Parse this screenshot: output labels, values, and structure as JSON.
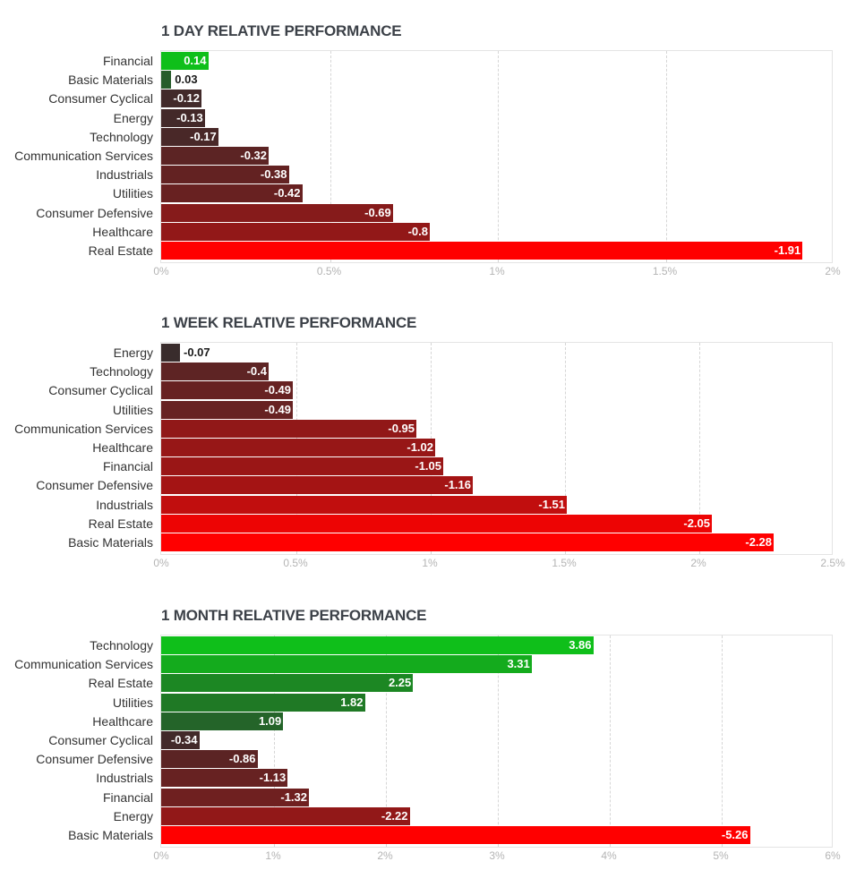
{
  "chart_data": [
    {
      "type": "bar",
      "orientation": "horizontal",
      "title": "1 DAY RELATIVE PERFORMANCE",
      "categories": [
        "Financial",
        "Basic Materials",
        "Consumer Cyclical",
        "Energy",
        "Technology",
        "Communication Services",
        "Industrials",
        "Utilities",
        "Consumer Defensive",
        "Healthcare",
        "Real Estate"
      ],
      "values": [
        0.14,
        0.03,
        -0.12,
        -0.13,
        -0.17,
        -0.32,
        -0.38,
        -0.42,
        -0.69,
        -0.8,
        -1.91
      ],
      "value_labels": [
        "0.14",
        "0.03",
        "-0.12",
        "-0.13",
        "-0.17",
        "-0.32",
        "-0.38",
        "-0.42",
        "-0.69",
        "-0.8",
        "-1.91"
      ],
      "xlim": [
        0,
        2
      ],
      "ticks": [
        0,
        0.5,
        1,
        1.5,
        2
      ],
      "tick_labels": [
        "0%",
        "0.5%",
        "1%",
        "1.5%",
        "2%"
      ],
      "scale": "absolute value"
    },
    {
      "type": "bar",
      "orientation": "horizontal",
      "title": "1 WEEK RELATIVE PERFORMANCE",
      "categories": [
        "Energy",
        "Technology",
        "Consumer Cyclical",
        "Utilities",
        "Communication Services",
        "Healthcare",
        "Financial",
        "Consumer Defensive",
        "Industrials",
        "Real Estate",
        "Basic Materials"
      ],
      "values": [
        -0.07,
        -0.4,
        -0.49,
        -0.49,
        -0.95,
        -1.02,
        -1.05,
        -1.16,
        -1.51,
        -2.05,
        -2.28
      ],
      "value_labels": [
        "-0.07",
        "-0.4",
        "-0.49",
        "-0.49",
        "-0.95",
        "-1.02",
        "-1.05",
        "-1.16",
        "-1.51",
        "-2.05",
        "-2.28"
      ],
      "xlim": [
        0,
        2.5
      ],
      "ticks": [
        0,
        0.5,
        1,
        1.5,
        2,
        2.5
      ],
      "tick_labels": [
        "0%",
        "0.5%",
        "1%",
        "1.5%",
        "2%",
        "2.5%"
      ],
      "scale": "absolute value"
    },
    {
      "type": "bar",
      "orientation": "horizontal",
      "title": "1 MONTH RELATIVE PERFORMANCE",
      "categories": [
        "Technology",
        "Communication Services",
        "Real Estate",
        "Utilities",
        "Healthcare",
        "Consumer Cyclical",
        "Consumer Defensive",
        "Industrials",
        "Financial",
        "Energy",
        "Basic Materials"
      ],
      "values": [
        3.86,
        3.31,
        2.25,
        1.82,
        1.09,
        -0.34,
        -0.86,
        -1.13,
        -1.32,
        -2.22,
        -5.26
      ],
      "value_labels": [
        "3.86",
        "3.31",
        "2.25",
        "1.82",
        "1.09",
        "-0.34",
        "-0.86",
        "-1.13",
        "-1.32",
        "-2.22",
        "-5.26"
      ],
      "xlim": [
        0,
        6
      ],
      "ticks": [
        0,
        1,
        2,
        3,
        4,
        5,
        6
      ],
      "tick_labels": [
        "0%",
        "1%",
        "2%",
        "3%",
        "4%",
        "5%",
        "6%"
      ],
      "scale": "absolute value"
    }
  ],
  "colors": {
    "negative_strong": "#ff0000",
    "negative_weak": "#2e2e2e",
    "positive_strong": "#0fbf1a",
    "positive_weak": "#2a4a2d"
  }
}
